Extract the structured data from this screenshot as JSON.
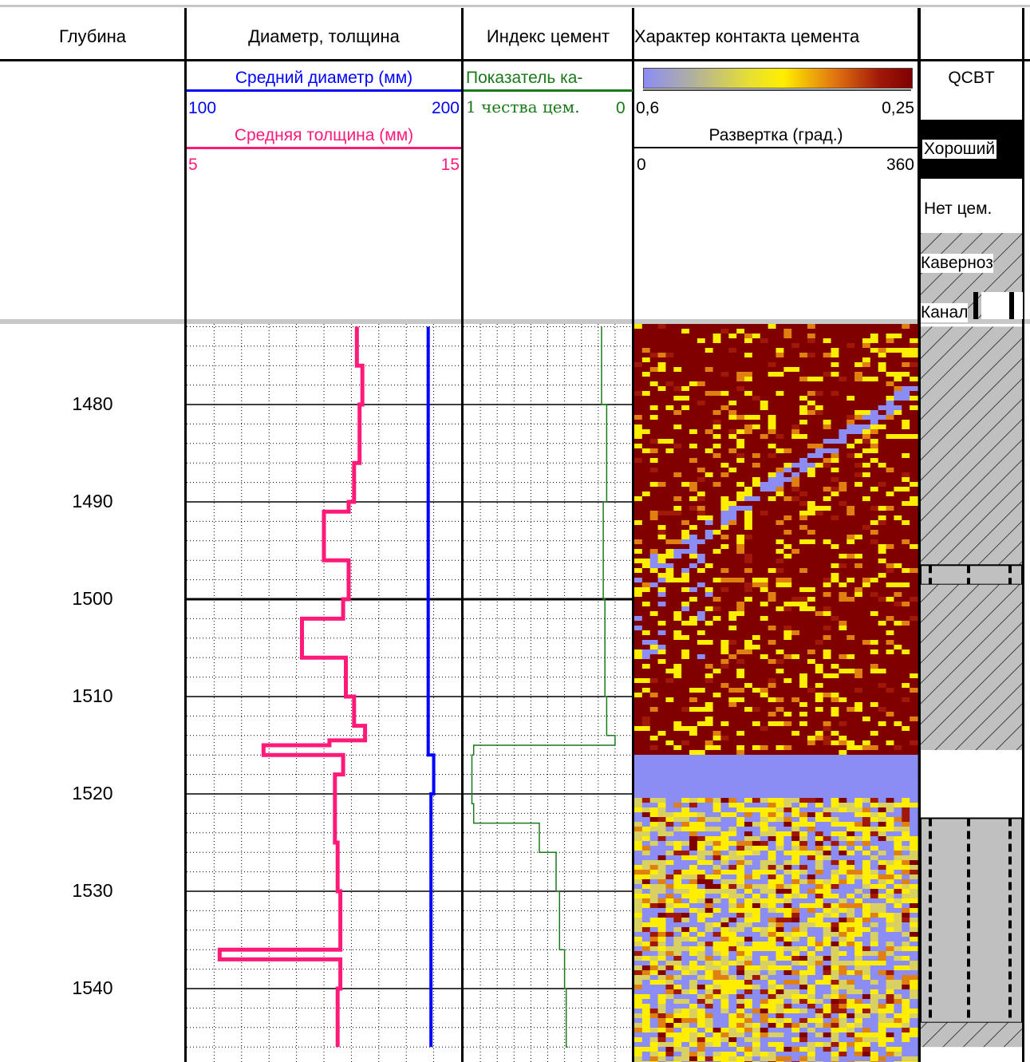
{
  "columns": {
    "depth": "Глубина",
    "diameter": "Диаметр, толщина",
    "cement_index": "Индекс цемент",
    "contact": "Характер контакта цемента"
  },
  "legend": {
    "mean_diameter": {
      "label": "Средний диаметр (мм)",
      "min": "100",
      "max": "200",
      "color": "#0000ff"
    },
    "mean_thickness": {
      "label": "Средняя толщина (мм)",
      "min": "5",
      "max": "15",
      "color": "#ff1a7a"
    },
    "cement_quality": {
      "label_line1": "Показатель ка-",
      "label_line2": "1 чества цем.",
      "max": "0",
      "color": "#1a7a1a"
    },
    "contact_scale": {
      "min": "0,6",
      "max": "0,25"
    },
    "sweep": {
      "label": "Развертка (град.)",
      "min": "0",
      "max": "360"
    },
    "qcbt": {
      "title": "QCBT",
      "good": "Хороший",
      "none": "Нет цем.",
      "cavern": "Каверноз",
      "channel": "Канал"
    }
  },
  "depth_ticks": [
    "1480",
    "1490",
    "1500",
    "1510",
    "1520",
    "1530",
    "1540"
  ],
  "chart_data": {
    "type": "line",
    "title": "",
    "x_unit": "depth",
    "depth_range": [
      1472,
      1546
    ],
    "series": [
      {
        "name": "Средний диаметр (мм)",
        "range": [
          100,
          200
        ],
        "x": [
          1472,
          1480,
          1490,
          1500,
          1510,
          1515,
          1516,
          1520,
          1530,
          1540,
          1546
        ],
        "values": [
          188,
          188,
          188,
          188,
          188,
          188,
          190,
          189,
          189,
          189,
          189
        ]
      },
      {
        "name": "Средняя толщина (мм)",
        "range": [
          5,
          15
        ],
        "x": [
          1472,
          1476,
          1480,
          1486,
          1490,
          1491,
          1496,
          1500,
          1502,
          1506,
          1510,
          1513,
          1514.5,
          1515,
          1516,
          1518,
          1520,
          1525,
          1530,
          1536,
          1537,
          1540,
          1546
        ],
        "values": [
          11.2,
          11.4,
          11.3,
          11.1,
          10.9,
          10.0,
          10.9,
          10.7,
          9.2,
          10.8,
          11.1,
          11.5,
          10.2,
          7.8,
          10.7,
          10.4,
          10.4,
          10.5,
          10.6,
          6.2,
          10.6,
          10.5,
          10.5
        ]
      },
      {
        "name": "Показатель качества цем.",
        "range": [
          1,
          0
        ],
        "x": [
          1472,
          1480,
          1490,
          1500,
          1510,
          1514,
          1515,
          1516,
          1521,
          1523,
          1526,
          1530,
          1536,
          1540,
          1546
        ],
        "values": [
          0.18,
          0.15,
          0.17,
          0.16,
          0.15,
          0.1,
          0.94,
          0.95,
          0.94,
          0.55,
          0.45,
          0.43,
          0.4,
          0.39,
          0.38
        ]
      }
    ],
    "qcbt_intervals": [
      {
        "from": 1472,
        "to": 1496.5,
        "type": "Каверноз"
      },
      {
        "from": 1496.5,
        "to": 1498.5,
        "type": "Канал"
      },
      {
        "from": 1498.5,
        "to": 1515.5,
        "type": "Каверноз"
      },
      {
        "from": 1515.5,
        "to": 1522.5,
        "type": "Нет цем."
      },
      {
        "from": 1522.5,
        "to": 1543.5,
        "type": "Канал"
      },
      {
        "from": 1543.5,
        "to": 1546,
        "type": "Каверноз"
      }
    ]
  }
}
